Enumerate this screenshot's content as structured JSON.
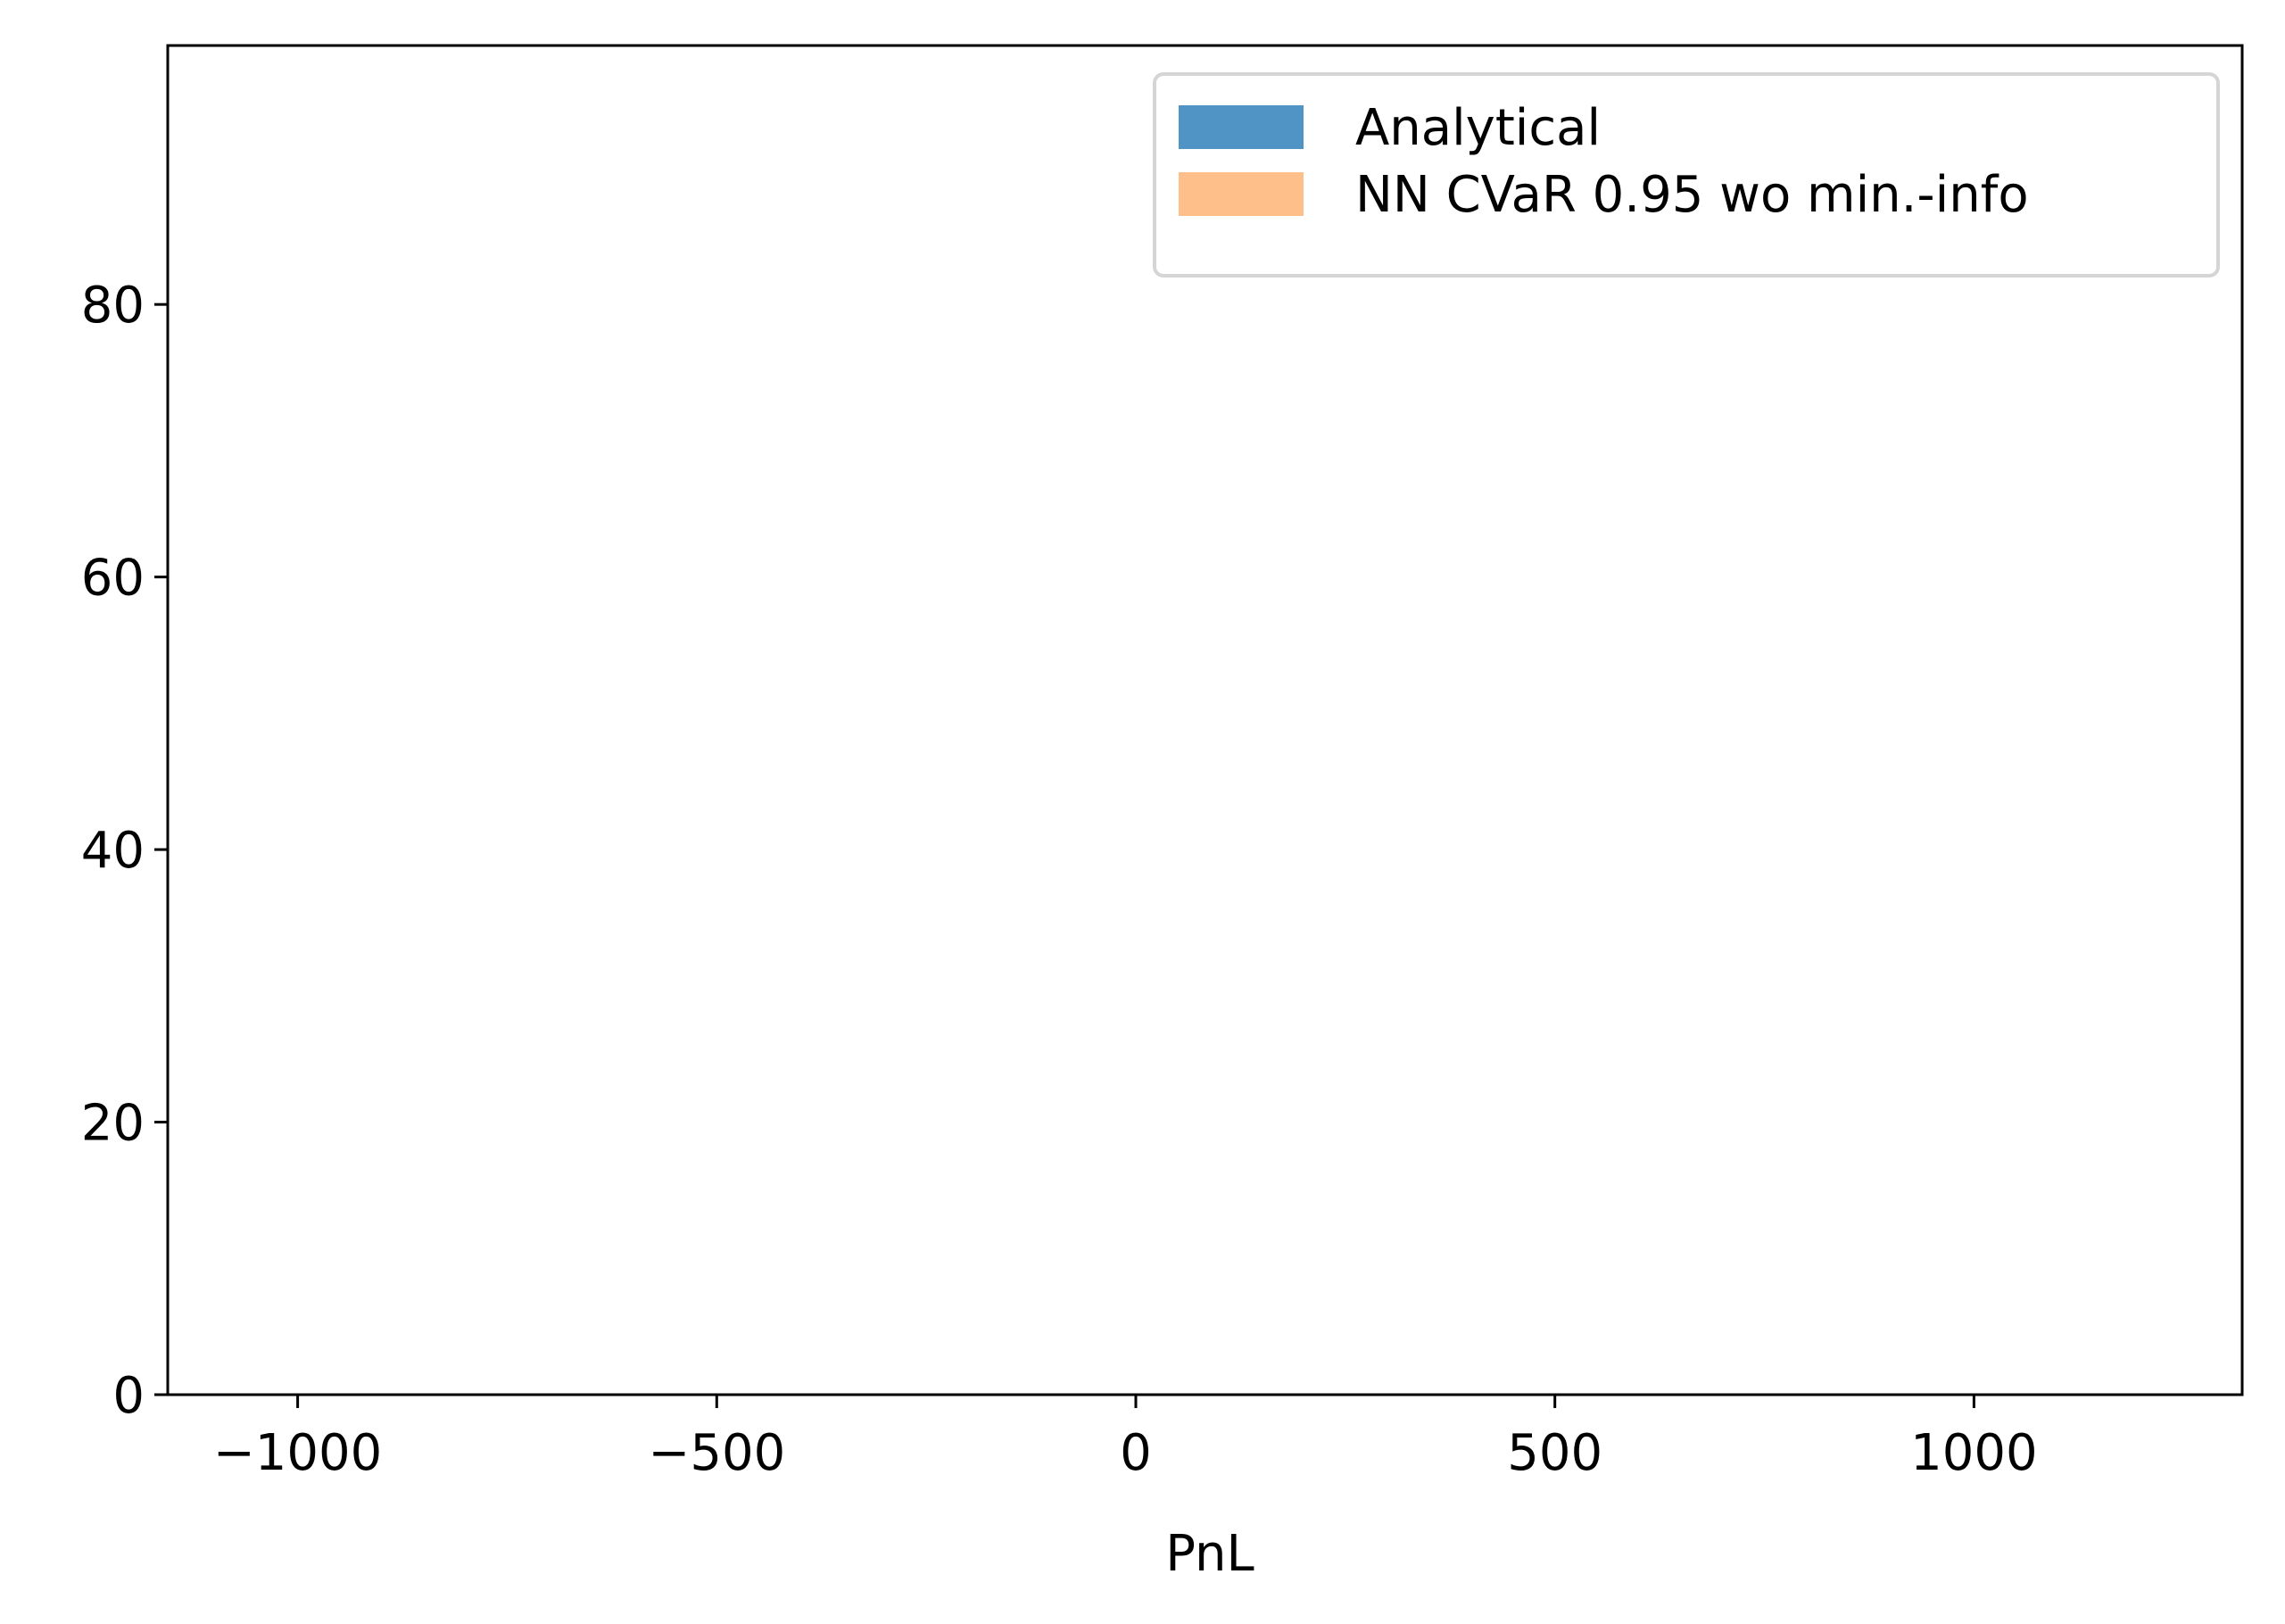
{
  "chart_data": {
    "type": "bar",
    "title": "",
    "xlabel": "PnL",
    "ylabel": "",
    "xlim": [
      -1155,
      1320
    ],
    "ylim": [
      0,
      99
    ],
    "x_ticks": [
      {
        "value": -1000,
        "label": "−1000"
      },
      {
        "value": -500,
        "label": "−500"
      },
      {
        "value": 0,
        "label": "0"
      },
      {
        "value": 500,
        "label": "500"
      },
      {
        "value": 1000,
        "label": "1000"
      }
    ],
    "y_ticks": [
      {
        "value": 0,
        "label": "0"
      },
      {
        "value": 20,
        "label": "20"
      },
      {
        "value": 40,
        "label": "40"
      },
      {
        "value": 60,
        "label": "60"
      },
      {
        "value": 80,
        "label": "80"
      }
    ],
    "grid": false,
    "legend_position": "top-right",
    "series": [
      {
        "name": "Analytical",
        "color": "#4f94c5",
        "values": []
      },
      {
        "name": "NN CVaR 0.95 wo min.-info",
        "color": "#ffbf8a",
        "values": []
      }
    ]
  }
}
